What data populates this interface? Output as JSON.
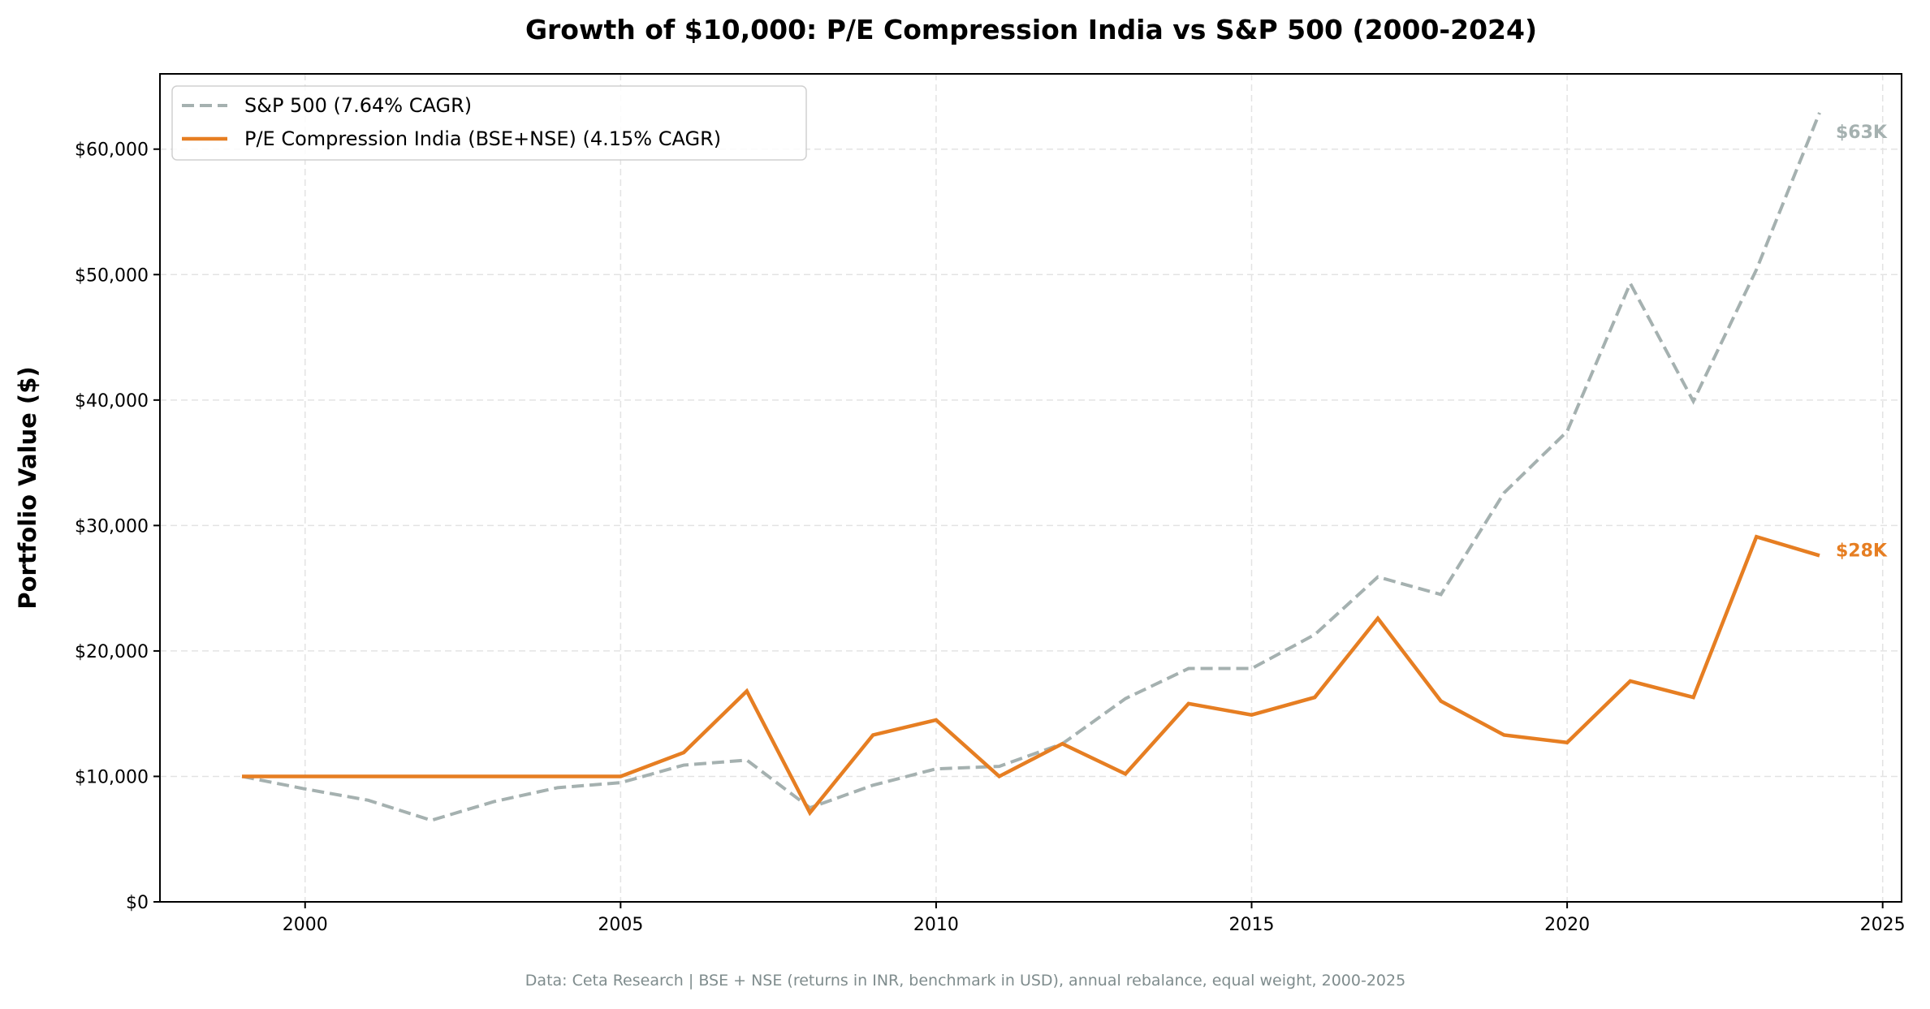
{
  "chart_data": {
    "type": "line",
    "title": "Growth of $10,000: P/E Compression India vs S&P 500 (2000-2024)",
    "xlabel": "",
    "ylabel": "Portfolio Value ($)",
    "xlim": [
      1997.7,
      2025.3
    ],
    "ylim": [
      0,
      66000
    ],
    "xticks": [
      2000,
      2005,
      2010,
      2015,
      2020,
      2025
    ],
    "xtick_labels": [
      "2000",
      "2005",
      "2010",
      "2015",
      "2020",
      "2025"
    ],
    "yticks": [
      0,
      10000,
      20000,
      30000,
      40000,
      50000,
      60000
    ],
    "ytick_labels": [
      "$0",
      "$10,000",
      "$20,000",
      "$30,000",
      "$40,000",
      "$50,000",
      "$60,000"
    ],
    "grid": true,
    "legend_position": "top-left",
    "x": [
      1999,
      2000,
      2001,
      2002,
      2003,
      2004,
      2005,
      2006,
      2007,
      2008,
      2009,
      2010,
      2011,
      2012,
      2013,
      2014,
      2015,
      2016,
      2017,
      2018,
      2019,
      2020,
      2021,
      2022,
      2023,
      2024
    ],
    "series": [
      {
        "name": "S&P 500 (7.64% CAGR)",
        "color": "#a5b1b0",
        "style": "dashed",
        "end_label": "$63K",
        "values": [
          10000,
          9000,
          8100,
          6500,
          8000,
          9100,
          9500,
          10900,
          11300,
          7500,
          9300,
          10600,
          10800,
          12600,
          16200,
          18600,
          18600,
          21300,
          25900,
          24500,
          32600,
          37500,
          49300,
          39900,
          50400,
          62900
        ]
      },
      {
        "name": "P/E Compression India (BSE+NSE) (4.15% CAGR)",
        "color": "#e67e22",
        "style": "solid",
        "end_label": "$28K",
        "values": [
          10000,
          10000,
          10000,
          10000,
          10000,
          10000,
          10000,
          11900,
          16800,
          7100,
          13300,
          14500,
          10000,
          12600,
          10200,
          15800,
          14900,
          16300,
          22600,
          16000,
          13300,
          12700,
          17600,
          16300,
          29100,
          27600
        ]
      }
    ],
    "footnote": "Data: Ceta Research | BSE + NSE (returns in INR, benchmark in USD), annual rebalance, equal weight, 2000-2025"
  }
}
